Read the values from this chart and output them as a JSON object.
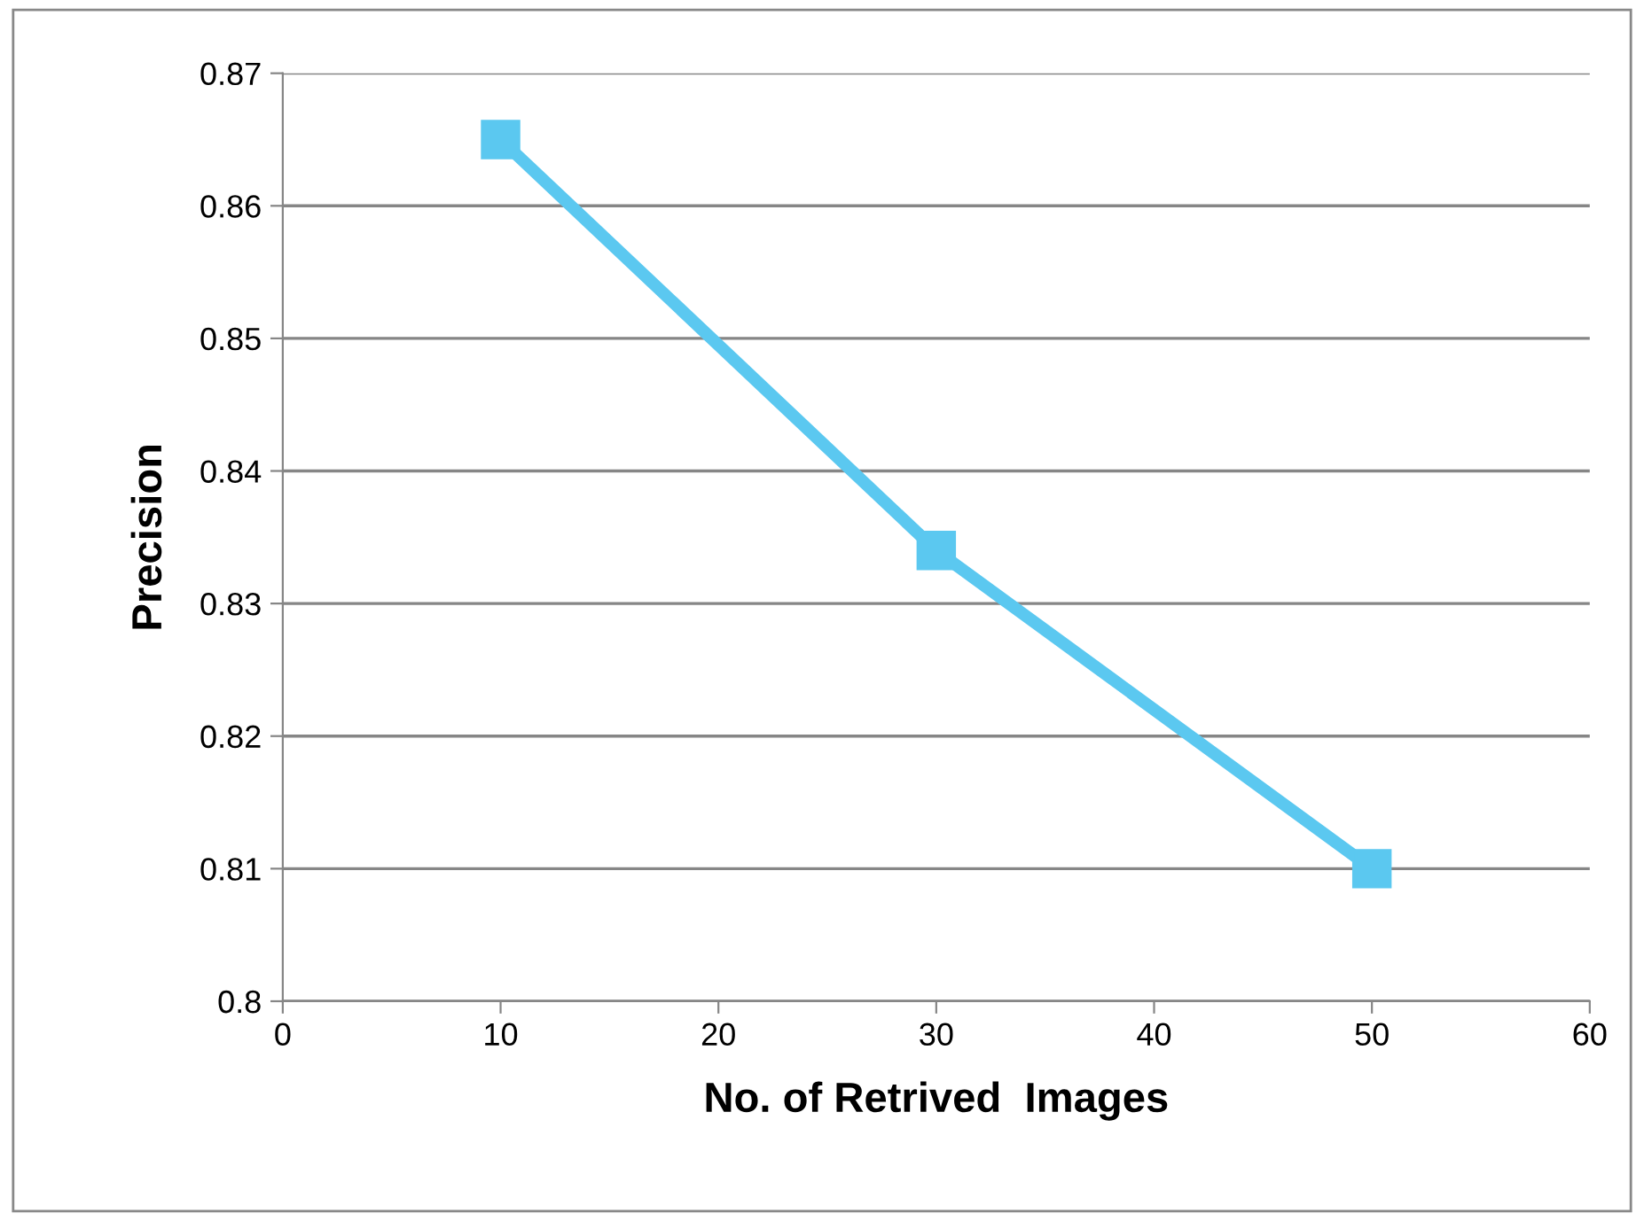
{
  "chart_data": {
    "type": "line",
    "xlabel": "No. of Retrived  Images",
    "ylabel": "Precision",
    "x": [
      10,
      30,
      50
    ],
    "series": [
      {
        "color": "#5bc8f0",
        "values": [
          0.865,
          0.834,
          0.81
        ]
      }
    ],
    "xlim": [
      0,
      60
    ],
    "xticks": [
      0,
      10,
      20,
      30,
      40,
      50,
      60
    ],
    "ylim": [
      0.8,
      0.87
    ],
    "yticks": [
      {
        "value": 0.8,
        "label": "0.8"
      },
      0.81,
      0.82,
      0.83,
      0.84,
      0.85,
      0.86,
      0.87
    ],
    "grid": "y",
    "marker": "square",
    "line_style": "solid",
    "legend": false
  }
}
